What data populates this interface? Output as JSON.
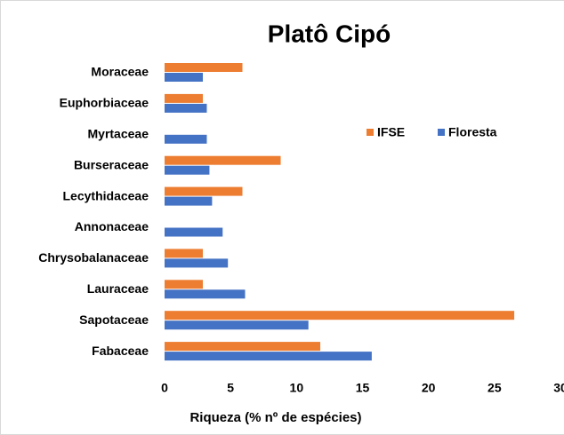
{
  "chart_data": {
    "type": "hbar",
    "title": "Platô Cipó",
    "xlabel": "Riqueza (% nº de espécies)",
    "categories": [
      "Moraceae",
      "Euphorbiaceae",
      "Myrtaceae",
      "Burseraceae",
      "Lecythidaceae",
      "Annonaceae",
      "Chrysobalanaceae",
      "Lauraceae",
      "Sapotaceae",
      "Fabaceae"
    ],
    "series": [
      {
        "name": "IFSE",
        "color": "#ed7d31",
        "values": [
          5.9,
          2.9,
          0,
          8.8,
          5.9,
          0,
          2.9,
          2.9,
          26.5,
          11.8
        ]
      },
      {
        "name": "Floresta",
        "color": "#4472c4",
        "values": [
          2.9,
          3.2,
          3.2,
          3.4,
          3.6,
          4.4,
          4.8,
          6.1,
          10.9,
          15.7
        ]
      }
    ],
    "xlim": [
      0,
      30
    ],
    "xticks": [
      0,
      5,
      10,
      15,
      20,
      25,
      30
    ],
    "grid": false,
    "legend": "right"
  }
}
